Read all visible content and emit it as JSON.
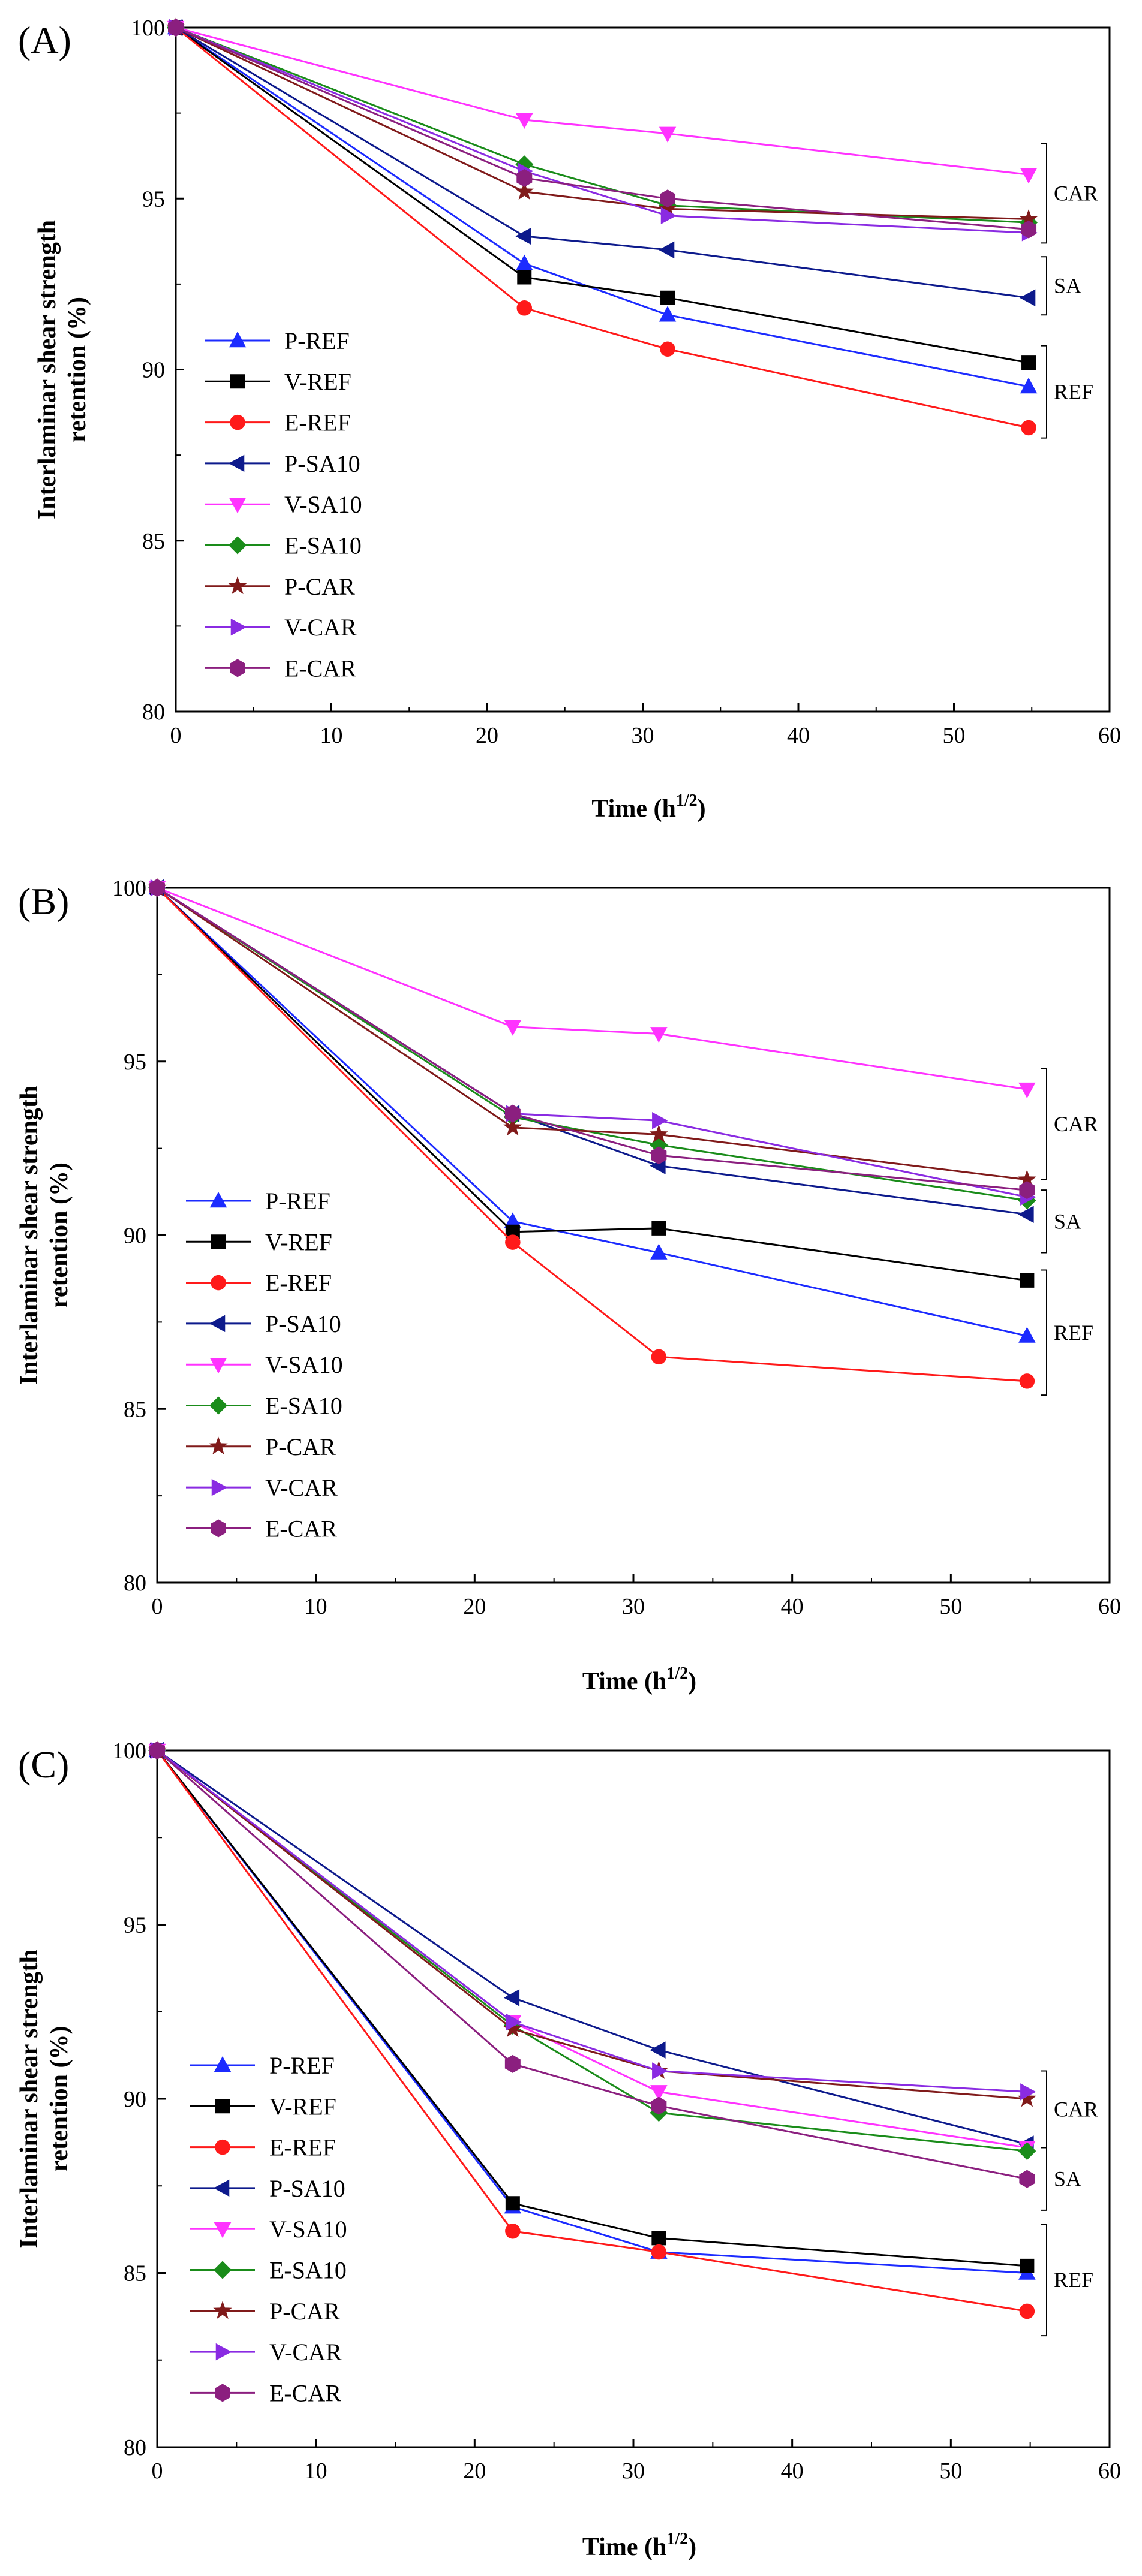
{
  "figure": {
    "panels": [
      {
        "label": "(A)",
        "xlabel_main": "Time (h",
        "xlabel_sup": "1/2",
        "xlabel_end": ")",
        "ylabel_line1": "Interlaminar shear strength",
        "ylabel_line2": "retention (%)",
        "groups": [
          {
            "label": "CAR",
            "y_range": [
              93.7,
              96.6
            ]
          },
          {
            "label": "SA",
            "y_range": [
              91.6,
              93.3
            ]
          },
          {
            "label": "REF",
            "y_range": [
              88.0,
              90.7
            ]
          }
        ]
      },
      {
        "label": "(B)",
        "xlabel_main": "Time (h",
        "xlabel_sup": "1/2",
        "xlabel_end": ")",
        "ylabel_line1": "Interlaminar shear strength",
        "ylabel_line2": "retention (%)",
        "groups": [
          {
            "label": "CAR",
            "y_range": [
              91.6,
              94.8
            ]
          },
          {
            "label": "SA",
            "y_range": [
              89.5,
              91.3
            ]
          },
          {
            "label": "REF",
            "y_range": [
              85.4,
              89.0
            ]
          }
        ]
      },
      {
        "label": "(C)",
        "xlabel_main": "Time (h",
        "xlabel_sup": "1/2",
        "xlabel_end": ")",
        "ylabel_line1": "Interlaminar shear strength",
        "ylabel_line2": "retention (%)",
        "groups": [
          {
            "label": "CAR",
            "y_range": [
              88.6,
              90.8
            ]
          },
          {
            "label": "SA",
            "y_range": [
              86.8,
              88.6
            ]
          },
          {
            "label": "REF",
            "y_range": [
              83.2,
              86.4
            ]
          }
        ]
      }
    ]
  },
  "chart_data": [
    {
      "type": "line",
      "title": "(A)",
      "xlabel": "Time (h1/2)",
      "ylabel": "Interlaminar shear strength retention (%)",
      "x": [
        0,
        22.4,
        31.6,
        54.8
      ],
      "xlim": [
        0,
        60
      ],
      "ylim": [
        80,
        100
      ],
      "xticks": [
        0,
        10,
        20,
        30,
        40,
        50,
        60
      ],
      "yticks": [
        80,
        85,
        90,
        95,
        100
      ],
      "legend_position": "left",
      "grid": false,
      "series": [
        {
          "name": "P-REF",
          "color": "#1c2bff",
          "marker": "triangle-up",
          "values": [
            100,
            93.1,
            91.6,
            89.5
          ]
        },
        {
          "name": "V-REF",
          "color": "#000000",
          "marker": "square",
          "values": [
            100,
            92.7,
            92.1,
            90.2
          ]
        },
        {
          "name": "E-REF",
          "color": "#ff1a1a",
          "marker": "circle",
          "values": [
            100,
            91.8,
            90.6,
            88.3
          ]
        },
        {
          "name": "P-SA10",
          "color": "#0d1a8c",
          "marker": "triangle-left",
          "values": [
            100,
            93.9,
            93.5,
            92.1
          ]
        },
        {
          "name": "V-SA10",
          "color": "#ff33ff",
          "marker": "triangle-down",
          "values": [
            100,
            97.3,
            96.9,
            95.7
          ]
        },
        {
          "name": "E-SA10",
          "color": "#1a8c1a",
          "marker": "diamond",
          "values": [
            100,
            96.0,
            94.8,
            94.3
          ]
        },
        {
          "name": "P-CAR",
          "color": "#801a1a",
          "marker": "star",
          "values": [
            100,
            95.2,
            94.7,
            94.4
          ]
        },
        {
          "name": "V-CAR",
          "color": "#8a2be2",
          "marker": "triangle-right",
          "values": [
            100,
            95.8,
            94.5,
            94.0
          ]
        },
        {
          "name": "E-CAR",
          "color": "#8b1f7f",
          "marker": "hexagon",
          "values": [
            100,
            95.6,
            95.0,
            94.1
          ]
        }
      ]
    },
    {
      "type": "line",
      "title": "(B)",
      "xlabel": "Time (h1/2)",
      "ylabel": "Interlaminar shear strength retention (%)",
      "x": [
        0,
        22.4,
        31.6,
        54.8
      ],
      "xlim": [
        0,
        60
      ],
      "ylim": [
        80,
        100
      ],
      "xticks": [
        0,
        10,
        20,
        30,
        40,
        50,
        60
      ],
      "yticks": [
        80,
        85,
        90,
        95,
        100
      ],
      "legend_position": "left",
      "grid": false,
      "series": [
        {
          "name": "P-REF",
          "color": "#1c2bff",
          "marker": "triangle-up",
          "values": [
            100,
            90.4,
            89.5,
            87.1
          ]
        },
        {
          "name": "V-REF",
          "color": "#000000",
          "marker": "square",
          "values": [
            100,
            90.1,
            90.2,
            88.7
          ]
        },
        {
          "name": "E-REF",
          "color": "#ff1a1a",
          "marker": "circle",
          "values": [
            100,
            89.8,
            86.5,
            85.8
          ]
        },
        {
          "name": "P-SA10",
          "color": "#0d1a8c",
          "marker": "triangle-left",
          "values": [
            100,
            93.5,
            92.0,
            90.6
          ]
        },
        {
          "name": "V-SA10",
          "color": "#ff33ff",
          "marker": "triangle-down",
          "values": [
            100,
            96.0,
            95.8,
            94.2
          ]
        },
        {
          "name": "E-SA10",
          "color": "#1a8c1a",
          "marker": "diamond",
          "values": [
            100,
            93.4,
            92.6,
            91.0
          ]
        },
        {
          "name": "P-CAR",
          "color": "#801a1a",
          "marker": "star",
          "values": [
            100,
            93.1,
            92.9,
            91.6
          ]
        },
        {
          "name": "V-CAR",
          "color": "#8a2be2",
          "marker": "triangle-right",
          "values": [
            100,
            93.5,
            93.3,
            91.1
          ]
        },
        {
          "name": "E-CAR",
          "color": "#8b1f7f",
          "marker": "hexagon",
          "values": [
            100,
            93.5,
            92.3,
            91.3
          ]
        }
      ]
    },
    {
      "type": "line",
      "title": "(C)",
      "xlabel": "Time (h1/2)",
      "ylabel": "Interlaminar shear strength retention (%)",
      "x": [
        0,
        22.4,
        31.6,
        54.8
      ],
      "xlim": [
        0,
        60
      ],
      "ylim": [
        80,
        100
      ],
      "xticks": [
        0,
        10,
        20,
        30,
        40,
        50,
        60
      ],
      "yticks": [
        80,
        85,
        90,
        95,
        100
      ],
      "legend_position": "left",
      "grid": false,
      "series": [
        {
          "name": "P-REF",
          "color": "#1c2bff",
          "marker": "triangle-up",
          "values": [
            100,
            86.9,
            85.6,
            85.0
          ]
        },
        {
          "name": "V-REF",
          "color": "#000000",
          "marker": "square",
          "values": [
            100,
            87.0,
            86.0,
            85.2
          ]
        },
        {
          "name": "E-REF",
          "color": "#ff1a1a",
          "marker": "circle",
          "values": [
            100,
            86.2,
            85.6,
            83.9
          ]
        },
        {
          "name": "P-SA10",
          "color": "#0d1a8c",
          "marker": "triangle-left",
          "values": [
            100,
            92.9,
            91.4,
            88.7
          ]
        },
        {
          "name": "V-SA10",
          "color": "#ff33ff",
          "marker": "triangle-down",
          "values": [
            100,
            92.2,
            90.2,
            88.6
          ]
        },
        {
          "name": "E-SA10",
          "color": "#1a8c1a",
          "marker": "diamond",
          "values": [
            100,
            92.1,
            89.6,
            88.5
          ]
        },
        {
          "name": "P-CAR",
          "color": "#801a1a",
          "marker": "star",
          "values": [
            100,
            92.0,
            90.8,
            90.0
          ]
        },
        {
          "name": "V-CAR",
          "color": "#8a2be2",
          "marker": "triangle-right",
          "values": [
            100,
            92.2,
            90.8,
            90.2
          ]
        },
        {
          "name": "E-CAR",
          "color": "#8b1f7f",
          "marker": "hexagon",
          "values": [
            100,
            91.0,
            89.8,
            87.7
          ]
        }
      ]
    }
  ]
}
